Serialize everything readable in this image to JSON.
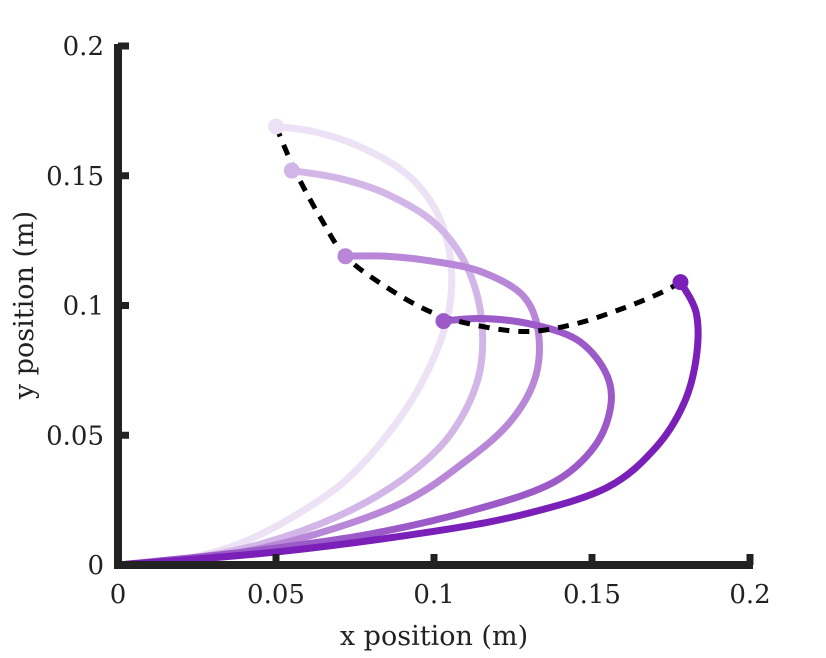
{
  "chart_data": {
    "type": "line",
    "title": "",
    "xlabel": "x position (m)",
    "ylabel": "y position (m)",
    "xlim": [
      0,
      0.2
    ],
    "ylim": [
      0,
      0.2
    ],
    "xticks": [
      0,
      0.05,
      0.1,
      0.15,
      0.2
    ],
    "yticks": [
      0,
      0.05,
      0.1,
      0.15,
      0.2
    ],
    "xtick_labels": [
      "0",
      "0.05",
      "0.1",
      "0.15",
      "0.2"
    ],
    "ytick_labels": [
      "0",
      "0.05",
      "0.1",
      "0.15",
      "0.2"
    ],
    "grid": false,
    "series": [
      {
        "name": "trajectory 1",
        "color": "#ede1f5",
        "x": [
          0.0,
          0.02,
          0.04,
          0.06,
          0.075,
          0.09,
          0.1,
          0.105,
          0.105,
          0.1,
          0.09,
          0.075,
          0.062,
          0.05
        ],
        "y": [
          0.0,
          0.002,
          0.009,
          0.022,
          0.036,
          0.058,
          0.08,
          0.1,
          0.12,
          0.138,
          0.152,
          0.162,
          0.167,
          0.169
        ]
      },
      {
        "name": "trajectory 2",
        "color": "#d3b6e8",
        "x": [
          0.0,
          0.02,
          0.045,
          0.07,
          0.09,
          0.105,
          0.114,
          0.115,
          0.11,
          0.1,
          0.085,
          0.07,
          0.055
        ],
        "y": [
          0.0,
          0.002,
          0.008,
          0.019,
          0.033,
          0.05,
          0.072,
          0.095,
          0.116,
          0.132,
          0.143,
          0.149,
          0.152
        ]
      },
      {
        "name": "trajectory 3",
        "color": "#b887d8",
        "x": [
          0.0,
          0.03,
          0.06,
          0.09,
          0.11,
          0.124,
          0.132,
          0.133,
          0.128,
          0.115,
          0.1,
          0.085,
          0.072
        ],
        "y": [
          0.0,
          0.003,
          0.011,
          0.024,
          0.04,
          0.055,
          0.072,
          0.09,
          0.104,
          0.113,
          0.117,
          0.119,
          0.119
        ]
      },
      {
        "name": "trajectory 4",
        "color": "#9c5ac8",
        "x": [
          0.0,
          0.04,
          0.08,
          0.115,
          0.138,
          0.151,
          0.156,
          0.154,
          0.145,
          0.13,
          0.115,
          0.103
        ],
        "y": [
          0.0,
          0.005,
          0.012,
          0.022,
          0.032,
          0.046,
          0.062,
          0.075,
          0.087,
          0.093,
          0.095,
          0.094
        ]
      },
      {
        "name": "trajectory 5",
        "color": "#7a1fb8",
        "x": [
          0.0,
          0.05,
          0.1,
          0.13,
          0.155,
          0.17,
          0.179,
          0.183,
          0.183,
          0.178
        ],
        "y": [
          0.0,
          0.005,
          0.013,
          0.02,
          0.03,
          0.045,
          0.062,
          0.08,
          0.097,
          0.109
        ]
      }
    ],
    "endpoints": [
      {
        "x": 0.05,
        "y": 0.169,
        "color": "#ede1f5"
      },
      {
        "x": 0.055,
        "y": 0.152,
        "color": "#d3b6e8"
      },
      {
        "x": 0.072,
        "y": 0.119,
        "color": "#b887d8"
      },
      {
        "x": 0.103,
        "y": 0.094,
        "color": "#9c5ac8"
      },
      {
        "x": 0.178,
        "y": 0.109,
        "color": "#7a1fb8"
      }
    ],
    "reference_curve": {
      "name": "dashed reference",
      "color": "#000000",
      "style": "dashed",
      "x": [
        0.05,
        0.056,
        0.064,
        0.072,
        0.085,
        0.1,
        0.115,
        0.13,
        0.145,
        0.16,
        0.172,
        0.178
      ],
      "y": [
        0.169,
        0.152,
        0.134,
        0.119,
        0.107,
        0.097,
        0.092,
        0.09,
        0.093,
        0.099,
        0.105,
        0.109
      ]
    },
    "axis_color": "#222222"
  }
}
